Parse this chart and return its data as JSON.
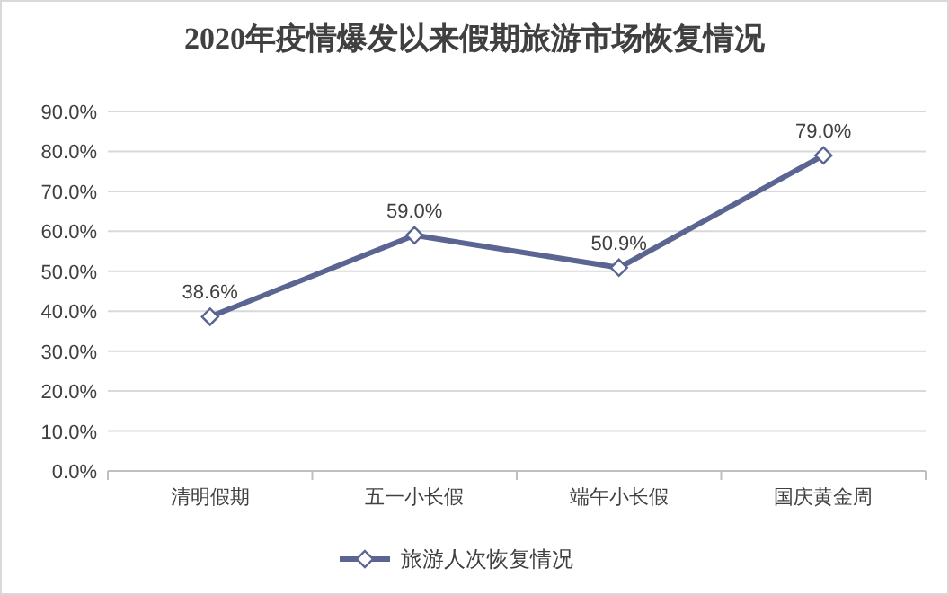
{
  "chart_data": {
    "type": "line",
    "title": "2020年疫情爆发以来假期旅游市场恢复情况",
    "categories": [
      "清明假期",
      "五一小长假",
      "端午小长假",
      "国庆黄金周"
    ],
    "series": [
      {
        "name": "旅游人次恢复情况",
        "color": "#5b6591",
        "values": [
          38.6,
          59.0,
          50.9,
          79.0
        ],
        "value_labels": [
          "38.6%",
          "59.0%",
          "50.9%",
          "79.0%"
        ]
      }
    ],
    "ylim": [
      0,
      90
    ],
    "yticks": [
      {
        "value": 0,
        "label": "0.0%"
      },
      {
        "value": 10,
        "label": "10.0%"
      },
      {
        "value": 20,
        "label": "20.0%"
      },
      {
        "value": 30,
        "label": "30.0%"
      },
      {
        "value": 40,
        "label": "40.0%"
      },
      {
        "value": 50,
        "label": "50.0%"
      },
      {
        "value": 60,
        "label": "60.0%"
      },
      {
        "value": 70,
        "label": "70.0%"
      },
      {
        "value": 80,
        "label": "80.0%"
      },
      {
        "value": 90,
        "label": "90.0%"
      }
    ],
    "grid": "y",
    "legend": "bottom",
    "marker": "diamond",
    "line_style": "solid"
  }
}
